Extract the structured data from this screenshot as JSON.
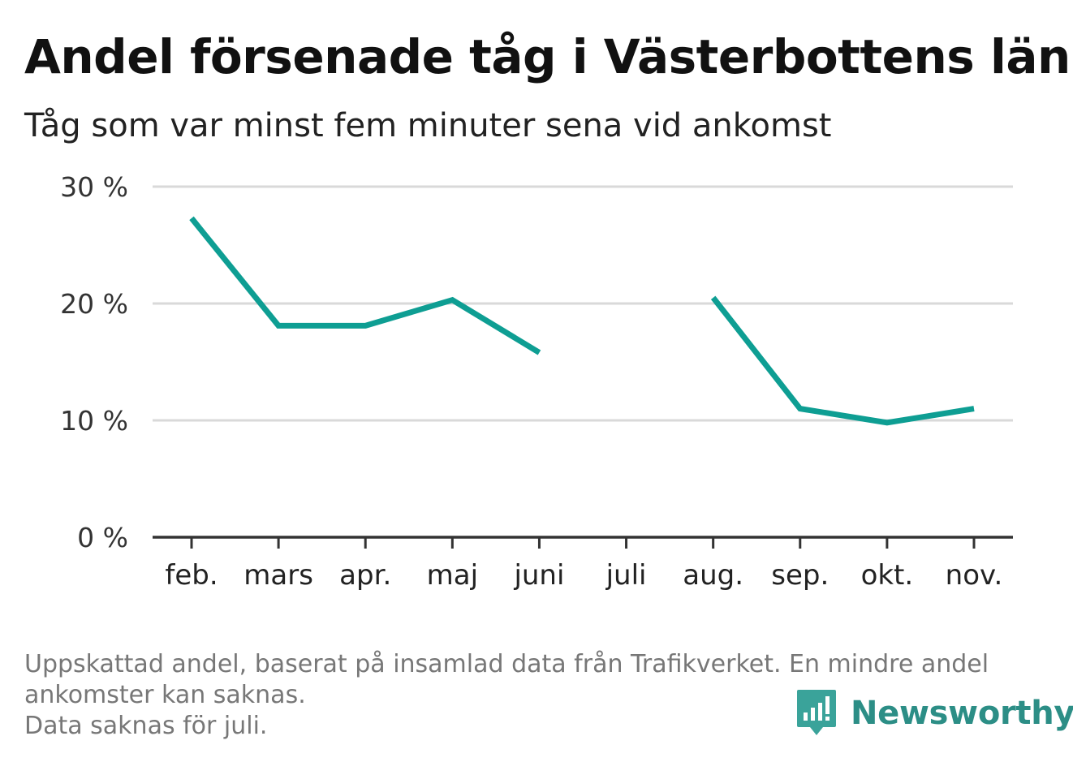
{
  "title": "Andel försenade tåg i Västerbottens län",
  "subtitle": "Tåg som var minst fem minuter sena vid ankomst",
  "footnote": {
    "line1": "Uppskattad andel, baserat på insamlad data från Trafikverket. En mindre andel",
    "line2": "ankomster kan saknas.",
    "line3": "Data saknas för juli."
  },
  "brand": {
    "name": "Newsworthy",
    "icon": "newsworthy-logo-icon"
  },
  "colors": {
    "line": "#0e9e93",
    "grid": "#d9d9d9",
    "axis": "#333333",
    "brand": "#2c8e86"
  },
  "chart_data": {
    "type": "line",
    "categories": [
      "feb.",
      "mars",
      "apr.",
      "maj",
      "juni",
      "juli",
      "aug.",
      "sep.",
      "okt.",
      "nov."
    ],
    "series": [
      {
        "values": [
          27.3,
          18.1,
          18.1,
          20.3,
          15.8,
          null,
          20.5,
          11.0,
          9.8,
          11.0
        ]
      }
    ],
    "ylim": [
      0,
      30
    ],
    "yticks": [
      0,
      10,
      20,
      30
    ],
    "ytick_labels": [
      "0 %",
      "10 %",
      "20 %",
      "30 %"
    ],
    "grid": true,
    "xlabel": "",
    "ylabel": ""
  }
}
